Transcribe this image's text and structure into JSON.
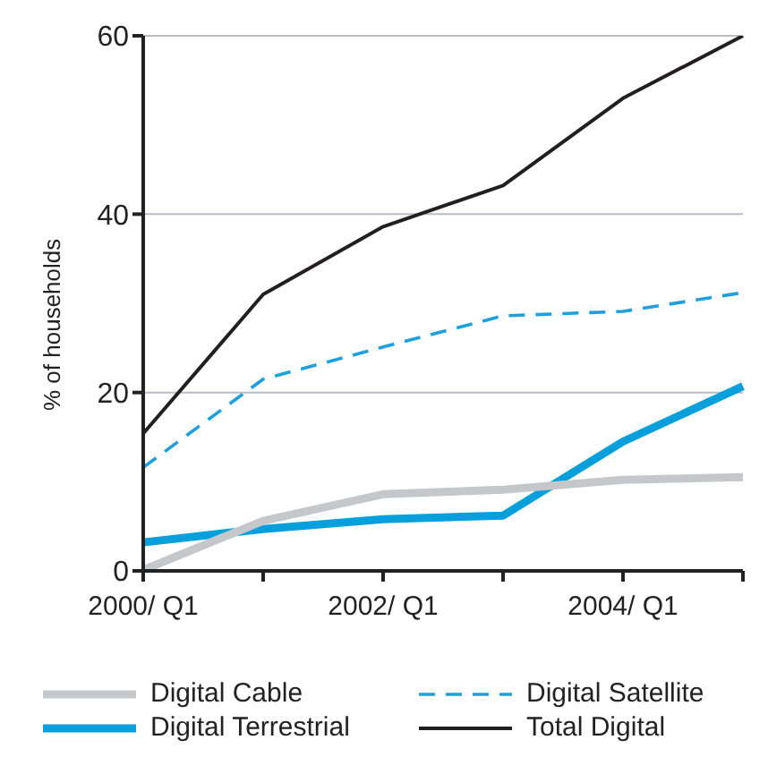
{
  "chart_data": {
    "type": "line",
    "ylabel": "% of households",
    "categories": [
      "2000/ Q1",
      null,
      "2002/ Q1",
      null,
      "2004/ Q1",
      null
    ],
    "series": [
      {
        "name": "Total Digital",
        "color": "#231f20",
        "values": [
          15.4,
          31.0,
          38.6,
          43.2,
          53.0,
          60
        ],
        "line_style": "solid"
      },
      {
        "name": "Digital Satellite",
        "color": "#1ea0dc",
        "values": [
          11.6,
          21.5,
          25.1,
          28.6,
          29.1,
          31.2
        ],
        "line_style": "dashed"
      },
      {
        "name": "Digital Terrestrial",
        "color": "#05a0dc",
        "values": [
          3.2,
          4.7,
          5.8,
          6.2,
          14.5,
          20.7
        ],
        "line_style": "solid"
      },
      {
        "name": "Digital Cable",
        "color": "#c5c7cb",
        "values": [
          0.1,
          5.6,
          8.6,
          9.1,
          10.2,
          10.5
        ],
        "line_style": "solid"
      }
    ],
    "ylim": [
      0,
      60
    ],
    "yticks": [
      0,
      20,
      40,
      60
    ],
    "grid": "y",
    "legend": "bottom",
    "marker": "none"
  }
}
